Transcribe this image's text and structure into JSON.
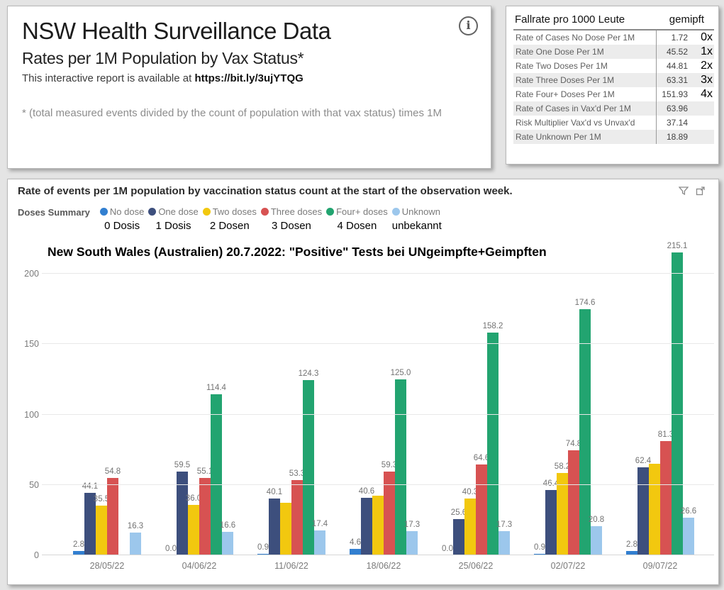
{
  "header_card": {
    "title": "NSW Health Surveillance Data",
    "subtitle": "Rates per 1M Population by Vax Status*",
    "report_line_prefix": "This interactive report is available at ",
    "report_link": "https://bit.ly/3ujYTQG",
    "footnote": "* (total measured events divided by the count of population with that vax status) times 1M",
    "info_icon": "info-icon"
  },
  "rate_table": {
    "title": "Fallrate pro 1000 Leute",
    "title_right": "gemipft",
    "rows": [
      {
        "label": "Rate of Cases No Dose Per 1M",
        "value": "1.72",
        "note": "0x"
      },
      {
        "label": "Rate One Dose Per 1M",
        "value": "45.52",
        "note": "1x"
      },
      {
        "label": "Rate Two Doses Per 1M",
        "value": "44.81",
        "note": "2x"
      },
      {
        "label": "Rate Three Doses Per 1M",
        "value": "63.31",
        "note": "3x"
      },
      {
        "label": "Rate Four+ Doses Per 1M",
        "value": "151.93",
        "note": "4x"
      },
      {
        "label": "Rate of Cases in Vax'd Per 1M",
        "value": "63.96",
        "note": ""
      },
      {
        "label": "Risk Multiplier Vax'd vs Unvax'd",
        "value": "37.14",
        "note": ""
      },
      {
        "label": "Rate Unknown Per 1M",
        "value": "18.89",
        "note": ""
      }
    ]
  },
  "chart": {
    "title": "Rate of events per 1M population by vaccination status count at the start of the observation week.",
    "legend_caption": "Doses Summary",
    "annotation": "New South Wales (Australien) 20.7.2022: \"Positive\" Tests bei UNgeimpfte+Geimpften",
    "icons": {
      "filter": "filter-icon",
      "expand": "expand-icon"
    }
  },
  "chart_data": {
    "type": "bar",
    "title": "Rate of events per 1M population by vaccination status count at the start of the observation week.",
    "xlabel": "",
    "ylabel": "",
    "yticks": [
      0,
      50,
      100,
      150,
      200
    ],
    "ylim": [
      0,
      225
    ],
    "grid": true,
    "legend_position": "top",
    "categories": [
      "28/05/22",
      "04/06/22",
      "11/06/22",
      "18/06/22",
      "25/06/22",
      "02/07/22",
      "09/07/22"
    ],
    "series": [
      {
        "name": "No dose",
        "name_de": "0 Dosis",
        "color": "#327fd0",
        "values": [
          2.8,
          0.0,
          0.9,
          4.6,
          0.0,
          0.9,
          2.8
        ],
        "labels": [
          "2.8",
          "0.0",
          "0.9",
          "4.6",
          "0.0",
          "0.9",
          "2.8"
        ]
      },
      {
        "name": "One dose",
        "name_de": "1 Dosis",
        "color": "#3d4f7d",
        "values": [
          44.1,
          59.5,
          40.1,
          40.6,
          25.6,
          46.4,
          62.4
        ],
        "labels": [
          "44.1",
          "59.5",
          "40.1",
          "40.6",
          "25.6",
          "46.4",
          "62.4"
        ]
      },
      {
        "name": "Two doses",
        "name_de": "2 Dosen",
        "color": "#f2c80f",
        "values": [
          35.5,
          36.0,
          37.5,
          42.5,
          40.3,
          58.2,
          65.0
        ],
        "labels": [
          "35.5",
          "36.0",
          "",
          "",
          "40.3",
          "58.2",
          ""
        ]
      },
      {
        "name": "Three doses",
        "name_de": "3 Dosen",
        "color": "#d75252",
        "values": [
          54.8,
          55.1,
          53.3,
          59.3,
          64.6,
          74.8,
          81.3
        ],
        "labels": [
          "54.8",
          "55.1",
          "53.3",
          "59.3",
          "64.6",
          "74.8",
          "81.3"
        ]
      },
      {
        "name": "Four+ doses",
        "name_de": "4 Dosen",
        "color": "#22a470",
        "values": [
          null,
          114.4,
          124.3,
          125.0,
          158.2,
          174.6,
          215.1
        ],
        "labels": [
          "",
          "114.4",
          "124.3",
          "125.0",
          "158.2",
          "174.6",
          "215.1"
        ]
      },
      {
        "name": "Unknown",
        "name_de": "unbekannt",
        "color": "#9cc7ec",
        "values": [
          16.3,
          16.6,
          17.4,
          17.3,
          17.3,
          20.8,
          26.6
        ],
        "labels": [
          "16.3",
          "16.6",
          "17.4",
          "17.3",
          "17.3",
          "20.8",
          "26.6"
        ]
      }
    ]
  }
}
